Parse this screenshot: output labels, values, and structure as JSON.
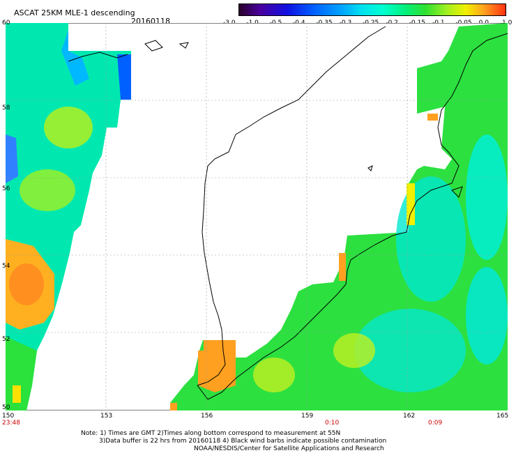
{
  "header": {
    "title": "ASCAT 25KM MLE-1 descending",
    "date": "20160118"
  },
  "colorbar": {
    "labels": [
      "-3.0",
      "-1.0",
      "-0.5",
      "-0.4",
      "-0.35",
      "-0.3",
      "-0.25",
      "-0.2",
      "-0.15",
      "-0.1",
      "-0.05",
      "0.0",
      "1.0"
    ],
    "colors": [
      "#2a002a",
      "#4a00a0",
      "#1010e0",
      "#0060ff",
      "#00a0ff",
      "#00e0f0",
      "#00ffd0",
      "#00f080",
      "#30e030",
      "#a0f020",
      "#f0f000",
      "#ffa020",
      "#ff3010"
    ]
  },
  "map": {
    "lat_labels": [
      "60",
      "58",
      "56",
      "54",
      "52",
      "50"
    ],
    "lon_labels": [
      "150",
      "153",
      "156",
      "159",
      "162",
      "165"
    ]
  },
  "times": {
    "left": "23:48",
    "mid": "0:10",
    "right": "0:09"
  },
  "notes": {
    "line1": "Note: 1) Times are GMT 2)Times along bottom correspond to measurement at 55N",
    "line2": "3)Data buffer is 22 hrs from 20160118 4) Black wind barbs indicate possible contamination",
    "line3": "NOAA/NESDIS/Center for Satellite Applications and Research"
  }
}
